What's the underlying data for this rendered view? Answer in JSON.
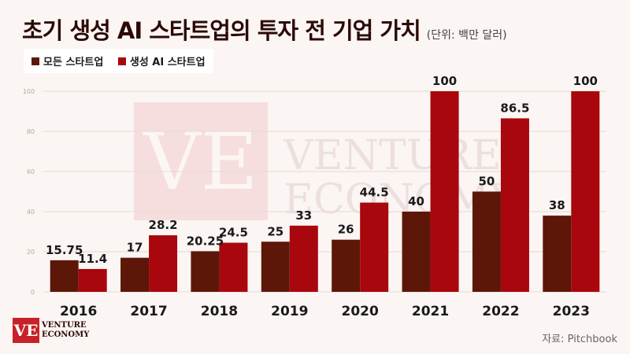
{
  "title": "초기 생성 AI 스타트업의 투자 전 기업 가치",
  "unit": "(단위: 백만 달러)",
  "source": "자료: Pitchbook",
  "logo": {
    "mark": "VE",
    "line1": "VENTURE",
    "line2": "ECONOMY"
  },
  "watermark": {
    "mark": "VE",
    "line1": "VENTURE",
    "line2": "ECONOMY"
  },
  "colors": {
    "series1": "#5c1708",
    "series2": "#a8070d"
  },
  "chart_data": {
    "type": "bar",
    "categories": [
      "2016",
      "2017",
      "2018",
      "2019",
      "2020",
      "2021",
      "2022",
      "2023"
    ],
    "series": [
      {
        "name": "모든 스타트업",
        "values": [
          15.75,
          17,
          20.25,
          25,
          26,
          40,
          50,
          38
        ],
        "labels": [
          "15.75",
          "17",
          "20.25",
          "25",
          "26",
          "40",
          "50",
          "38"
        ]
      },
      {
        "name": "생성 AI 스타트업",
        "values": [
          11.4,
          28.2,
          24.5,
          33,
          44.5,
          100,
          86.5,
          100
        ],
        "labels": [
          "11.4",
          "28.2",
          "24.5",
          "33",
          "44.5",
          "100",
          "86.5",
          "100"
        ]
      }
    ],
    "ylim": [
      0,
      100
    ],
    "yticks": [
      0,
      20,
      40,
      60,
      80,
      100
    ],
    "grid": true,
    "legend": "top-left"
  }
}
